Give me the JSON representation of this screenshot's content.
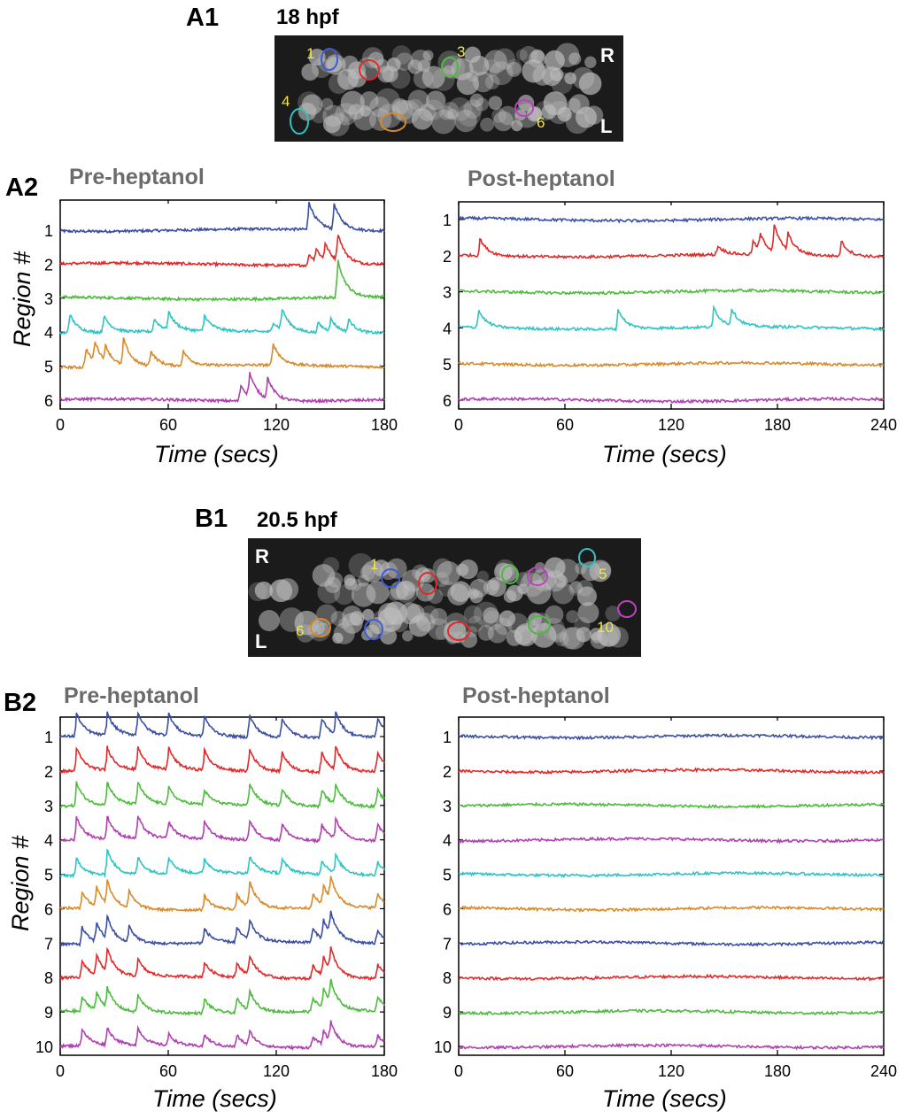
{
  "panels": {
    "a1": "A1",
    "a2": "A2",
    "b1": "B1",
    "b2": "B2",
    "a1_stage": "18 hpf",
    "b1_stage": "20.5 hpf"
  },
  "micrographs": [
    {
      "id": "a1",
      "side_top": "R",
      "side_bottom": "L",
      "rois": [
        {
          "label": "1",
          "color": "#3f5cd6"
        },
        {
          "label": "",
          "color": "#e02a2a"
        },
        {
          "label": "3",
          "color": "#4dbb3d"
        },
        {
          "label": "4",
          "color": "#2ec4c4"
        },
        {
          "label": "",
          "color": "#d98a2a"
        },
        {
          "label": "6",
          "color": "#c040c0"
        }
      ]
    },
    {
      "id": "b1",
      "side_top": "R",
      "side_bottom": "L",
      "rois": [
        {
          "label": "1",
          "color": "#3f5cd6"
        },
        {
          "label": "",
          "color": "#e02a2a"
        },
        {
          "label": "",
          "color": "#4dbb3d"
        },
        {
          "label": "",
          "color": "#c040c0"
        },
        {
          "label": "5",
          "color": "#2ec4c4"
        },
        {
          "label": "6",
          "color": "#d98a2a"
        },
        {
          "label": "",
          "color": "#3f5cd6"
        },
        {
          "label": "",
          "color": "#e02a2a"
        },
        {
          "label": "",
          "color": "#4dbb3d"
        },
        {
          "label": "10",
          "color": "#c040c0"
        }
      ]
    }
  ],
  "chart_data": [
    {
      "id": "A2-pre",
      "type": "line",
      "title": "Pre-heptanol",
      "xlabel": "Time (secs)",
      "ylabel": "Region #",
      "xlim": [
        0,
        180
      ],
      "xticks": [
        0,
        60,
        120,
        180
      ],
      "series": [
        {
          "label": "1",
          "color": "#3b4fa0",
          "baseline": 0,
          "spikes": [
            [
              138,
              1.0
            ],
            [
              152,
              0.9
            ]
          ]
        },
        {
          "label": "2",
          "color": "#e02a2a",
          "baseline": 0,
          "spikes": [
            [
              138,
              0.4
            ],
            [
              142,
              0.45
            ],
            [
              147,
              0.6
            ],
            [
              154,
              1.0
            ]
          ]
        },
        {
          "label": "3",
          "color": "#4dbb3d",
          "baseline": 0,
          "spikes": [
            [
              154,
              1.4
            ]
          ]
        },
        {
          "label": "4",
          "color": "#2ec4c4",
          "baseline": 0,
          "spikes": [
            [
              5,
              0.7
            ],
            [
              24,
              0.6
            ],
            [
              52,
              0.45
            ],
            [
              60,
              0.65
            ],
            [
              80,
              0.55
            ],
            [
              118,
              0.35
            ],
            [
              123,
              0.75
            ],
            [
              143,
              0.35
            ],
            [
              150,
              0.45
            ],
            [
              160,
              0.45
            ]
          ]
        },
        {
          "label": "5",
          "color": "#d98a2a",
          "baseline": 0,
          "spikes": [
            [
              14,
              0.7
            ],
            [
              19,
              0.75
            ],
            [
              25,
              0.55
            ],
            [
              35,
              0.95
            ],
            [
              50,
              0.55
            ],
            [
              68,
              0.55
            ],
            [
              118,
              0.8
            ]
          ]
        },
        {
          "label": "6",
          "color": "#b040b0",
          "baseline": 0,
          "spikes": [
            [
              100,
              0.6
            ],
            [
              105,
              0.85
            ],
            [
              115,
              0.75
            ]
          ]
        }
      ]
    },
    {
      "id": "A2-post",
      "type": "line",
      "title": "Post-heptanol",
      "xlabel": "Time (secs)",
      "ylabel": "",
      "xlim": [
        0,
        240
      ],
      "xticks": [
        0,
        60,
        120,
        180,
        240
      ],
      "series": [
        {
          "label": "1",
          "color": "#3b4fa0",
          "baseline": 0,
          "spikes": []
        },
        {
          "label": "2",
          "color": "#e02a2a",
          "baseline": 0,
          "spikes": [
            [
              12,
              0.55
            ],
            [
              146,
              0.3
            ],
            [
              166,
              0.45
            ],
            [
              170,
              0.55
            ],
            [
              178,
              0.9
            ],
            [
              186,
              0.55
            ],
            [
              216,
              0.5
            ]
          ]
        },
        {
          "label": "3",
          "color": "#4dbb3d",
          "baseline": 0,
          "spikes": []
        },
        {
          "label": "4",
          "color": "#2ec4c4",
          "baseline": 0,
          "spikes": [
            [
              11,
              0.6
            ],
            [
              90,
              0.65
            ],
            [
              144,
              0.65
            ],
            [
              154,
              0.55
            ]
          ]
        },
        {
          "label": "5",
          "color": "#d98a2a",
          "baseline": 0,
          "spikes": []
        },
        {
          "label": "6",
          "color": "#b040b0",
          "baseline": 0,
          "spikes": []
        }
      ]
    },
    {
      "id": "B2-pre",
      "type": "line",
      "title": "Pre-heptanol",
      "xlabel": "Time (secs)",
      "ylabel": "Region #",
      "xlim": [
        0,
        180
      ],
      "xticks": [
        0,
        60,
        120,
        180
      ],
      "series": [
        {
          "label": "1",
          "color": "#3b4fa0",
          "baseline": 0,
          "spikes": [
            [
              9,
              0.8
            ],
            [
              26,
              0.8
            ],
            [
              43,
              0.8
            ],
            [
              60,
              0.8
            ],
            [
              80,
              0.7
            ],
            [
              105,
              0.8
            ],
            [
              123,
              0.7
            ],
            [
              145,
              0.7
            ],
            [
              153,
              0.8
            ],
            [
              176,
              0.7
            ]
          ]
        },
        {
          "label": "2",
          "color": "#e02a2a",
          "baseline": 0,
          "spikes": [
            [
              9,
              0.8
            ],
            [
              26,
              0.8
            ],
            [
              43,
              0.8
            ],
            [
              60,
              0.8
            ],
            [
              80,
              0.7
            ],
            [
              105,
              0.8
            ],
            [
              123,
              0.7
            ],
            [
              145,
              0.7
            ],
            [
              153,
              0.8
            ],
            [
              176,
              0.7
            ]
          ]
        },
        {
          "label": "3",
          "color": "#4dbb3d",
          "baseline": 0,
          "spikes": [
            [
              9,
              0.8
            ],
            [
              26,
              0.8
            ],
            [
              43,
              0.8
            ],
            [
              60,
              0.6
            ],
            [
              80,
              0.5
            ],
            [
              105,
              0.8
            ],
            [
              123,
              0.6
            ],
            [
              145,
              0.6
            ],
            [
              153,
              0.7
            ],
            [
              176,
              0.6
            ]
          ]
        },
        {
          "label": "4",
          "color": "#b040b0",
          "baseline": 0,
          "spikes": [
            [
              9,
              0.8
            ],
            [
              26,
              0.8
            ],
            [
              43,
              0.8
            ],
            [
              60,
              0.6
            ],
            [
              80,
              0.6
            ],
            [
              105,
              0.7
            ],
            [
              123,
              0.6
            ],
            [
              145,
              0.6
            ],
            [
              153,
              0.7
            ],
            [
              176,
              0.6
            ]
          ]
        },
        {
          "label": "5",
          "color": "#2ec4c4",
          "baseline": 0,
          "spikes": [
            [
              9,
              0.6
            ],
            [
              26,
              0.9
            ],
            [
              43,
              0.6
            ],
            [
              60,
              0.6
            ],
            [
              80,
              0.5
            ],
            [
              105,
              0.6
            ],
            [
              123,
              0.5
            ],
            [
              145,
              0.5
            ],
            [
              153,
              0.6
            ],
            [
              176,
              0.5
            ]
          ]
        },
        {
          "label": "6",
          "color": "#d98a2a",
          "baseline": 0,
          "spikes": [
            [
              12,
              0.6
            ],
            [
              20,
              0.7
            ],
            [
              26,
              0.8
            ],
            [
              38,
              0.6
            ],
            [
              80,
              0.5
            ],
            [
              98,
              0.5
            ],
            [
              105,
              0.9
            ],
            [
              140,
              0.5
            ],
            [
              146,
              0.7
            ],
            [
              150,
              0.8
            ],
            [
              176,
              0.5
            ]
          ]
        },
        {
          "label": "7",
          "color": "#3b4fa0",
          "baseline": 0,
          "spikes": [
            [
              12,
              0.6
            ],
            [
              20,
              0.7
            ],
            [
              26,
              0.8
            ],
            [
              38,
              0.6
            ],
            [
              80,
              0.5
            ],
            [
              98,
              0.5
            ],
            [
              105,
              0.7
            ],
            [
              140,
              0.5
            ],
            [
              146,
              0.7
            ],
            [
              150,
              0.8
            ],
            [
              176,
              0.5
            ]
          ]
        },
        {
          "label": "8",
          "color": "#e02a2a",
          "baseline": 0,
          "spikes": [
            [
              12,
              0.6
            ],
            [
              20,
              0.7
            ],
            [
              26,
              0.8
            ],
            [
              43,
              0.6
            ],
            [
              80,
              0.5
            ],
            [
              98,
              0.5
            ],
            [
              105,
              0.7
            ],
            [
              140,
              0.5
            ],
            [
              146,
              0.7
            ],
            [
              150,
              0.8
            ],
            [
              176,
              0.5
            ]
          ]
        },
        {
          "label": "9",
          "color": "#4dbb3d",
          "baseline": 0,
          "spikes": [
            [
              12,
              0.5
            ],
            [
              20,
              0.6
            ],
            [
              26,
              0.7
            ],
            [
              43,
              0.6
            ],
            [
              80,
              0.5
            ],
            [
              98,
              0.5
            ],
            [
              105,
              0.7
            ],
            [
              140,
              0.5
            ],
            [
              146,
              0.7
            ],
            [
              150,
              0.8
            ],
            [
              176,
              0.5
            ]
          ]
        },
        {
          "label": "10",
          "color": "#b040b0",
          "baseline": 0,
          "spikes": [
            [
              12,
              0.6
            ],
            [
              26,
              0.6
            ],
            [
              43,
              0.6
            ],
            [
              60,
              0.4
            ],
            [
              80,
              0.4
            ],
            [
              98,
              0.4
            ],
            [
              105,
              0.5
            ],
            [
              140,
              0.4
            ],
            [
              146,
              0.5
            ],
            [
              150,
              0.7
            ],
            [
              176,
              0.4
            ]
          ]
        }
      ]
    },
    {
      "id": "B2-post",
      "type": "line",
      "title": "Post-heptanol",
      "xlabel": "Time (secs)",
      "ylabel": "",
      "xlim": [
        0,
        240
      ],
      "xticks": [
        0,
        60,
        120,
        180,
        240
      ],
      "series": [
        {
          "label": "1",
          "color": "#3b4fa0",
          "baseline": 0,
          "spikes": []
        },
        {
          "label": "2",
          "color": "#e02a2a",
          "baseline": 0,
          "spikes": []
        },
        {
          "label": "3",
          "color": "#4dbb3d",
          "baseline": 0,
          "spikes": []
        },
        {
          "label": "4",
          "color": "#b040b0",
          "baseline": 0,
          "spikes": []
        },
        {
          "label": "5",
          "color": "#2ec4c4",
          "baseline": 0,
          "spikes": []
        },
        {
          "label": "6",
          "color": "#d98a2a",
          "baseline": 0,
          "spikes": []
        },
        {
          "label": "7",
          "color": "#3b4fa0",
          "baseline": 0,
          "spikes": []
        },
        {
          "label": "8",
          "color": "#e02a2a",
          "baseline": 0,
          "spikes": []
        },
        {
          "label": "9",
          "color": "#4dbb3d",
          "baseline": 0,
          "spikes": []
        },
        {
          "label": "10",
          "color": "#b040b0",
          "baseline": 0,
          "spikes": []
        }
      ]
    }
  ]
}
